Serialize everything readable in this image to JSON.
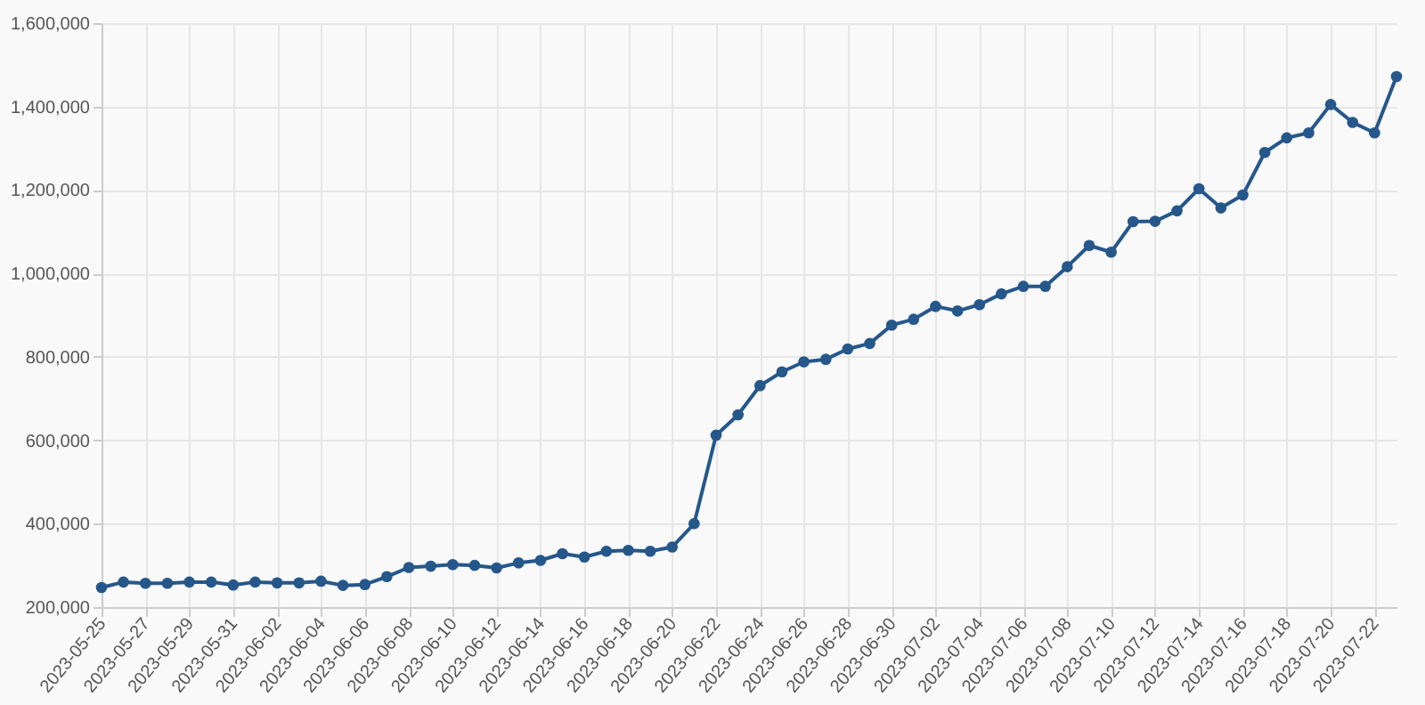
{
  "chart_data": {
    "type": "line",
    "x": [
      "2023-05-25",
      "2023-05-26",
      "2023-05-27",
      "2023-05-28",
      "2023-05-29",
      "2023-05-30",
      "2023-05-31",
      "2023-06-01",
      "2023-06-02",
      "2023-06-03",
      "2023-06-04",
      "2023-06-05",
      "2023-06-06",
      "2023-06-07",
      "2023-06-08",
      "2023-06-09",
      "2023-06-10",
      "2023-06-11",
      "2023-06-12",
      "2023-06-13",
      "2023-06-14",
      "2023-06-15",
      "2023-06-16",
      "2023-06-17",
      "2023-06-18",
      "2023-06-19",
      "2023-06-20",
      "2023-06-21",
      "2023-06-22",
      "2023-06-23",
      "2023-06-24",
      "2023-06-25",
      "2023-06-26",
      "2023-06-27",
      "2023-06-28",
      "2023-06-29",
      "2023-06-30",
      "2023-07-01",
      "2023-07-02",
      "2023-07-03",
      "2023-07-04",
      "2023-07-05",
      "2023-07-06",
      "2023-07-07",
      "2023-07-08",
      "2023-07-09",
      "2023-07-10",
      "2023-07-11",
      "2023-07-12",
      "2023-07-13",
      "2023-07-14",
      "2023-07-15",
      "2023-07-16",
      "2023-07-17",
      "2023-07-18",
      "2023-07-19",
      "2023-07-20",
      "2023-07-21",
      "2023-07-22",
      "2023-07-23"
    ],
    "series": [
      {
        "color": "#25578a",
        "values": [
          247000,
          260000,
          257000,
          257000,
          260000,
          260000,
          253000,
          260000,
          258000,
          258000,
          262000,
          252000,
          254000,
          273000,
          295000,
          298000,
          302000,
          300000,
          294000,
          306000,
          312000,
          328000,
          320000,
          334000,
          336000,
          334000,
          344000,
          400000,
          612000,
          661000,
          731000,
          764000,
          788000,
          794000,
          819000,
          832000,
          876000,
          890000,
          921000,
          910000,
          925000,
          951000,
          969000,
          969000,
          1016000,
          1067000,
          1051000,
          1124000,
          1125000,
          1150000,
          1203000,
          1157000,
          1188000,
          1290000,
          1325000,
          1337000,
          1405000,
          1362000,
          1337000,
          1472000
        ]
      }
    ],
    "xlim": [
      "2023-05-25",
      "2023-07-23"
    ],
    "xticks": [
      "2023-05-25",
      "2023-05-27",
      "2023-05-29",
      "2023-05-31",
      "2023-06-02",
      "2023-06-04",
      "2023-06-06",
      "2023-06-08",
      "2023-06-10",
      "2023-06-12",
      "2023-06-14",
      "2023-06-16",
      "2023-06-18",
      "2023-06-20",
      "2023-06-22",
      "2023-06-24",
      "2023-06-26",
      "2023-06-28",
      "2023-06-30",
      "2023-07-02",
      "2023-07-04",
      "2023-07-06",
      "2023-07-08",
      "2023-07-10",
      "2023-07-12",
      "2023-07-14",
      "2023-07-16",
      "2023-07-18",
      "2023-07-20",
      "2023-07-22"
    ],
    "ylim": [
      200000,
      1600000
    ],
    "yticks": [
      {
        "value": 200000,
        "label": "200,000"
      },
      {
        "value": 400000,
        "label": "400,000"
      },
      {
        "value": 600000,
        "label": "600,000"
      },
      {
        "value": 800000,
        "label": "800,000"
      },
      {
        "value": 1000000,
        "label": "1,000,000"
      },
      {
        "value": 1200000,
        "label": "1,200,000"
      },
      {
        "value": 1400000,
        "label": "1,400,000"
      },
      {
        "value": 1600000,
        "label": "1,600,000"
      }
    ],
    "grid": true,
    "marker": "circle",
    "line_style": "solid"
  }
}
